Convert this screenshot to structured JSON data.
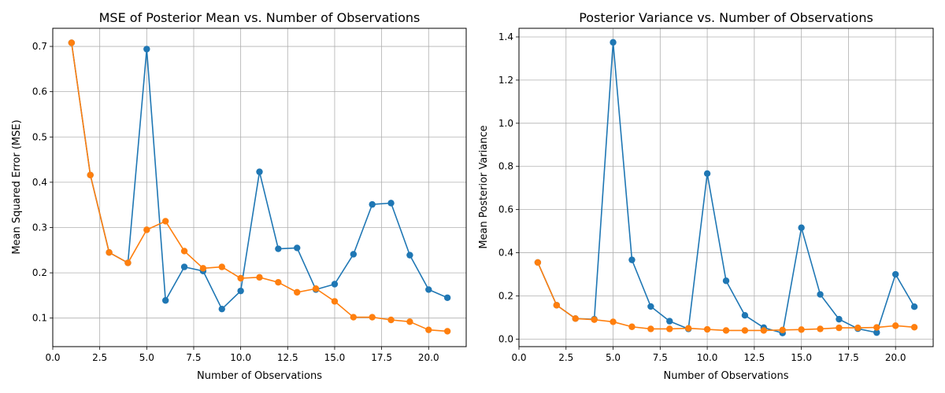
{
  "chart_data": [
    {
      "type": "line",
      "title": "MSE of Posterior Mean vs. Number of Observations",
      "xlabel": "Number of Observations",
      "ylabel": "Mean Squared Error (MSE)",
      "xlim": [
        0,
        22
      ],
      "ylim": [
        0.037,
        0.74
      ],
      "xticks": [
        0,
        2.5,
        5,
        7.5,
        10,
        12.5,
        15,
        17.5,
        20
      ],
      "xtick_labels": [
        "0.0",
        "2.5",
        "5.0",
        "7.5",
        "10.0",
        "12.5",
        "15.0",
        "17.5",
        "20.0"
      ],
      "yticks": [
        0.1,
        0.2,
        0.3,
        0.4,
        0.5,
        0.6,
        0.7
      ],
      "ytick_labels": [
        "0.1",
        "0.2",
        "0.3",
        "0.4",
        "0.5",
        "0.6",
        "0.7"
      ],
      "grid": true,
      "x": [
        1,
        2,
        3,
        4,
        5,
        6,
        7,
        8,
        9,
        10,
        11,
        12,
        13,
        14,
        15,
        16,
        17,
        18,
        19,
        20,
        21
      ],
      "series": [
        {
          "color": "#1f77b4",
          "marker": "circle",
          "values": [
            0.708,
            0.416,
            0.245,
            0.222,
            0.694,
            0.139,
            0.213,
            0.204,
            0.12,
            0.16,
            0.423,
            0.253,
            0.255,
            0.163,
            0.175,
            0.241,
            0.351,
            0.354,
            0.239,
            0.163,
            0.145
          ]
        },
        {
          "color": "#ff7f0e",
          "marker": "circle",
          "values": [
            0.708,
            0.416,
            0.245,
            0.222,
            0.295,
            0.314,
            0.248,
            0.21,
            0.213,
            0.188,
            0.19,
            0.179,
            0.157,
            0.165,
            0.137,
            0.102,
            0.102,
            0.096,
            0.092,
            0.074,
            0.071
          ]
        }
      ]
    },
    {
      "type": "line",
      "title": "Posterior Variance vs. Number of Observations",
      "xlabel": "Number of Observations",
      "ylabel": "Mean Posterior Variance",
      "xlim": [
        0,
        22
      ],
      "ylim": [
        -0.035,
        1.44
      ],
      "xticks": [
        0,
        2.5,
        5,
        7.5,
        10,
        12.5,
        15,
        17.5,
        20
      ],
      "xtick_labels": [
        "0.0",
        "2.5",
        "5.0",
        "7.5",
        "10.0",
        "12.5",
        "15.0",
        "17.5",
        "20.0"
      ],
      "yticks": [
        0.0,
        0.2,
        0.4,
        0.6,
        0.8,
        1.0,
        1.2,
        1.4
      ],
      "ytick_labels": [
        "0.0",
        "0.2",
        "0.4",
        "0.6",
        "0.8",
        "1.0",
        "1.2",
        "1.4"
      ],
      "grid": true,
      "x": [
        1,
        2,
        3,
        4,
        5,
        6,
        7,
        8,
        9,
        10,
        11,
        12,
        13,
        14,
        15,
        16,
        17,
        18,
        19,
        20,
        21
      ],
      "series": [
        {
          "color": "#1f77b4",
          "marker": "circle",
          "values": [
            0.355,
            0.157,
            0.095,
            0.092,
            1.375,
            0.367,
            0.151,
            0.083,
            0.047,
            0.767,
            0.27,
            0.11,
            0.053,
            0.028,
            0.516,
            0.207,
            0.092,
            0.048,
            0.03,
            0.3,
            0.15
          ]
        },
        {
          "color": "#ff7f0e",
          "marker": "circle",
          "values": [
            0.355,
            0.157,
            0.095,
            0.09,
            0.08,
            0.057,
            0.047,
            0.047,
            0.05,
            0.045,
            0.04,
            0.04,
            0.04,
            0.042,
            0.044,
            0.047,
            0.052,
            0.052,
            0.054,
            0.062,
            0.055
          ]
        }
      ]
    }
  ]
}
